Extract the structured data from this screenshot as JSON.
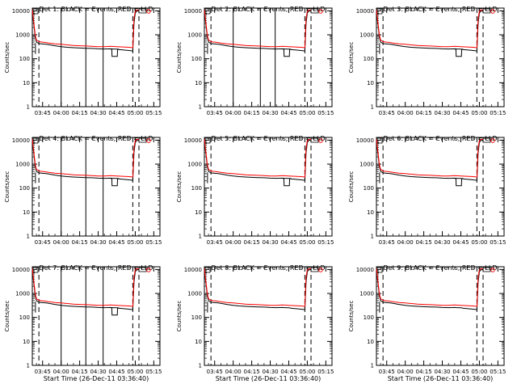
{
  "colors": {
    "background": "#ffffff",
    "axes": "#000000",
    "events_line": "#000000",
    "lld_line": "#ff0000"
  },
  "chart_data": [
    {
      "type": "line",
      "title": "Det 1: BLACK = Events, RED = LLD",
      "ylabel": "Counts/sec",
      "xlabel": "Start Time (26-Dec-11 03:36:40)",
      "show_ylabel": true,
      "show_xlabel": false,
      "solid_markers": [
        "04:00",
        "04:20",
        "04:34"
      ],
      "dip": true
    },
    {
      "type": "line",
      "title": "Det 2: BLACK = Events, RED = LLD",
      "ylabel": "Counts/sec",
      "xlabel": "Start Time (26-Dec-11 03:36:40)",
      "show_ylabel": true,
      "show_xlabel": false,
      "solid_markers": [
        "04:00",
        "04:22",
        "04:34"
      ],
      "dip": true
    },
    {
      "type": "line",
      "title": "Det 3: BLACK = Events, RED = LLD",
      "ylabel": "Counts/sec",
      "xlabel": "Start Time (26-Dec-11 03:36:40)",
      "show_ylabel": true,
      "show_xlabel": false,
      "solid_markers": [],
      "dip": true
    },
    {
      "type": "line",
      "title": "Det 4: BLACK = Events, RED = LLD",
      "ylabel": "Counts/sec",
      "xlabel": "Start Time (26-Dec-11 03:36:40)",
      "show_ylabel": true,
      "show_xlabel": false,
      "solid_markers": [
        "04:00",
        "04:20",
        "04:34"
      ],
      "dip": true
    },
    {
      "type": "line",
      "title": "Det 5: BLACK = Events, RED = LLD",
      "ylabel": "Counts/sec",
      "xlabel": "Start Time (26-Dec-11 03:36:40)",
      "show_ylabel": true,
      "show_xlabel": false,
      "solid_markers": [],
      "dip": true
    },
    {
      "type": "line",
      "title": "Det 6: BLACK = Events, RED = LLD",
      "ylabel": "Counts/sec",
      "xlabel": "Start Time (26-Dec-11 03:36:40)",
      "show_ylabel": true,
      "show_xlabel": false,
      "solid_markers": [],
      "dip": true
    },
    {
      "type": "line",
      "title": "Det 7: BLACK = Events, RED = LLD",
      "ylabel": "Counts/sec",
      "xlabel": "Start Time (26-Dec-11 03:36:40)",
      "show_ylabel": true,
      "show_xlabel": true,
      "solid_markers": [
        "04:00",
        "04:20",
        "04:34"
      ],
      "dip": true
    },
    {
      "type": "line",
      "title": "Det 8: BLACK = Events, RED = LLD",
      "ylabel": "Counts/sec",
      "xlabel": "Start Time (26-Dec-11 03:36:40)",
      "show_ylabel": true,
      "show_xlabel": true,
      "solid_markers": [],
      "dip": false
    },
    {
      "type": "line",
      "title": "Det 9: BLACK = Events, RED = LLD",
      "ylabel": "Counts/sec",
      "xlabel": "Start Time (26-Dec-11 03:36:40)",
      "show_ylabel": true,
      "show_xlabel": true,
      "solid_markers": [],
      "dip": false
    }
  ],
  "shared": {
    "x_ticks": [
      "03:45",
      "04:00",
      "04:15",
      "04:30",
      "04:45",
      "05:00",
      "05:15"
    ],
    "x_tick_minutes": [
      45,
      60,
      75,
      90,
      105,
      120,
      135
    ],
    "x_range_minutes": [
      36.67,
      140
    ],
    "dashed_markers_minutes": [
      42,
      118,
      123
    ],
    "y_ticks": [
      "1",
      "10",
      "100",
      "1000",
      "10000"
    ],
    "y_tick_values": [
      1,
      10,
      100,
      1000,
      10000
    ],
    "y_range": [
      1,
      13000
    ],
    "series": [
      {
        "name": "Events",
        "color": "#000000",
        "x": [
          36.67,
          38,
          39,
          40,
          42,
          44,
          46,
          48,
          50,
          55,
          60,
          65,
          70,
          75,
          80,
          85,
          90,
          95,
          100,
          102,
          103,
          106,
          107,
          110,
          115,
          118,
          119,
          120,
          121,
          122,
          123
        ],
        "y": [
          9000,
          2500,
          800,
          500,
          430,
          420,
          410,
          400,
          390,
          350,
          320,
          300,
          290,
          280,
          275,
          270,
          260,
          255,
          260,
          255,
          255,
          250,
          240,
          235,
          220,
          210,
          3000,
          8000,
          9500,
          9800,
          9900
        ]
      },
      {
        "name": "LLD",
        "color": "#ff0000",
        "x": [
          36.67,
          38,
          39,
          40,
          42,
          44,
          46,
          48,
          50,
          55,
          60,
          65,
          70,
          75,
          80,
          85,
          90,
          95,
          100,
          105,
          110,
          115,
          118,
          119,
          120,
          121,
          122,
          123
        ],
        "y": [
          11000,
          3000,
          1000,
          600,
          520,
          500,
          490,
          470,
          450,
          420,
          400,
          380,
          360,
          350,
          340,
          330,
          320,
          320,
          330,
          320,
          310,
          300,
          290,
          5000,
          9500,
          10500,
          10800,
          11000
        ]
      }
    ],
    "dip_segment": {
      "x": [
        100,
        101,
        101.2,
        105.5,
        105.7,
        107
      ],
      "y": [
        255,
        250,
        125,
        125,
        250,
        250
      ]
    }
  }
}
